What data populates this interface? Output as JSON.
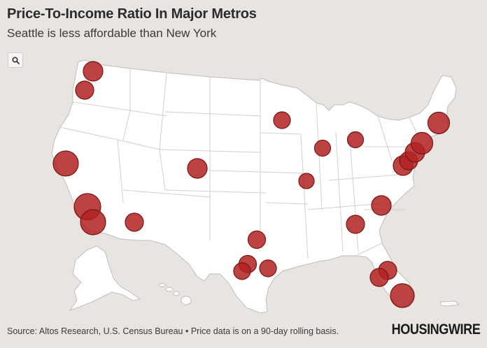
{
  "title": "Price-To-Income Ratio In Major Metros",
  "subtitle": "Seattle is less affordable than New York",
  "search_icon": "search-icon",
  "source": "Source: Altos Research, U.S. Census Bureau • Price data is on a 90-day rolling basis.",
  "brand": "HOUSINGWIRE",
  "colors": {
    "background": "#e8e5e1",
    "land": "#ffffff",
    "bubble": "#b22222"
  },
  "metros": [
    {
      "id": "seattle",
      "relative_size": 1.0
    },
    {
      "id": "portland",
      "relative_size": 0.9
    },
    {
      "id": "san-francisco",
      "relative_size": 1.27
    },
    {
      "id": "los-angeles",
      "relative_size": 1.36
    },
    {
      "id": "san-diego",
      "relative_size": 1.27
    },
    {
      "id": "phoenix",
      "relative_size": 0.9
    },
    {
      "id": "denver",
      "relative_size": 0.96
    },
    {
      "id": "minneapolis",
      "relative_size": 0.82
    },
    {
      "id": "chicago",
      "relative_size": 0.79
    },
    {
      "id": "st-louis",
      "relative_size": 0.75
    },
    {
      "id": "detroit",
      "relative_size": 0.79
    },
    {
      "id": "dallas",
      "relative_size": 0.86
    },
    {
      "id": "austin",
      "relative_size": 0.86
    },
    {
      "id": "san-antonio",
      "relative_size": 0.82
    },
    {
      "id": "houston",
      "relative_size": 0.82
    },
    {
      "id": "atlanta",
      "relative_size": 0.9
    },
    {
      "id": "charlotte",
      "relative_size": 0.96
    },
    {
      "id": "washington-dc",
      "relative_size": 0.96
    },
    {
      "id": "baltimore",
      "relative_size": 0.9
    },
    {
      "id": "philadelphia",
      "relative_size": 0.96
    },
    {
      "id": "new-york",
      "relative_size": 1.06
    },
    {
      "id": "boston",
      "relative_size": 1.06
    },
    {
      "id": "orlando",
      "relative_size": 0.9
    },
    {
      "id": "tampa",
      "relative_size": 0.9
    },
    {
      "id": "miami",
      "relative_size": 1.16
    }
  ]
}
